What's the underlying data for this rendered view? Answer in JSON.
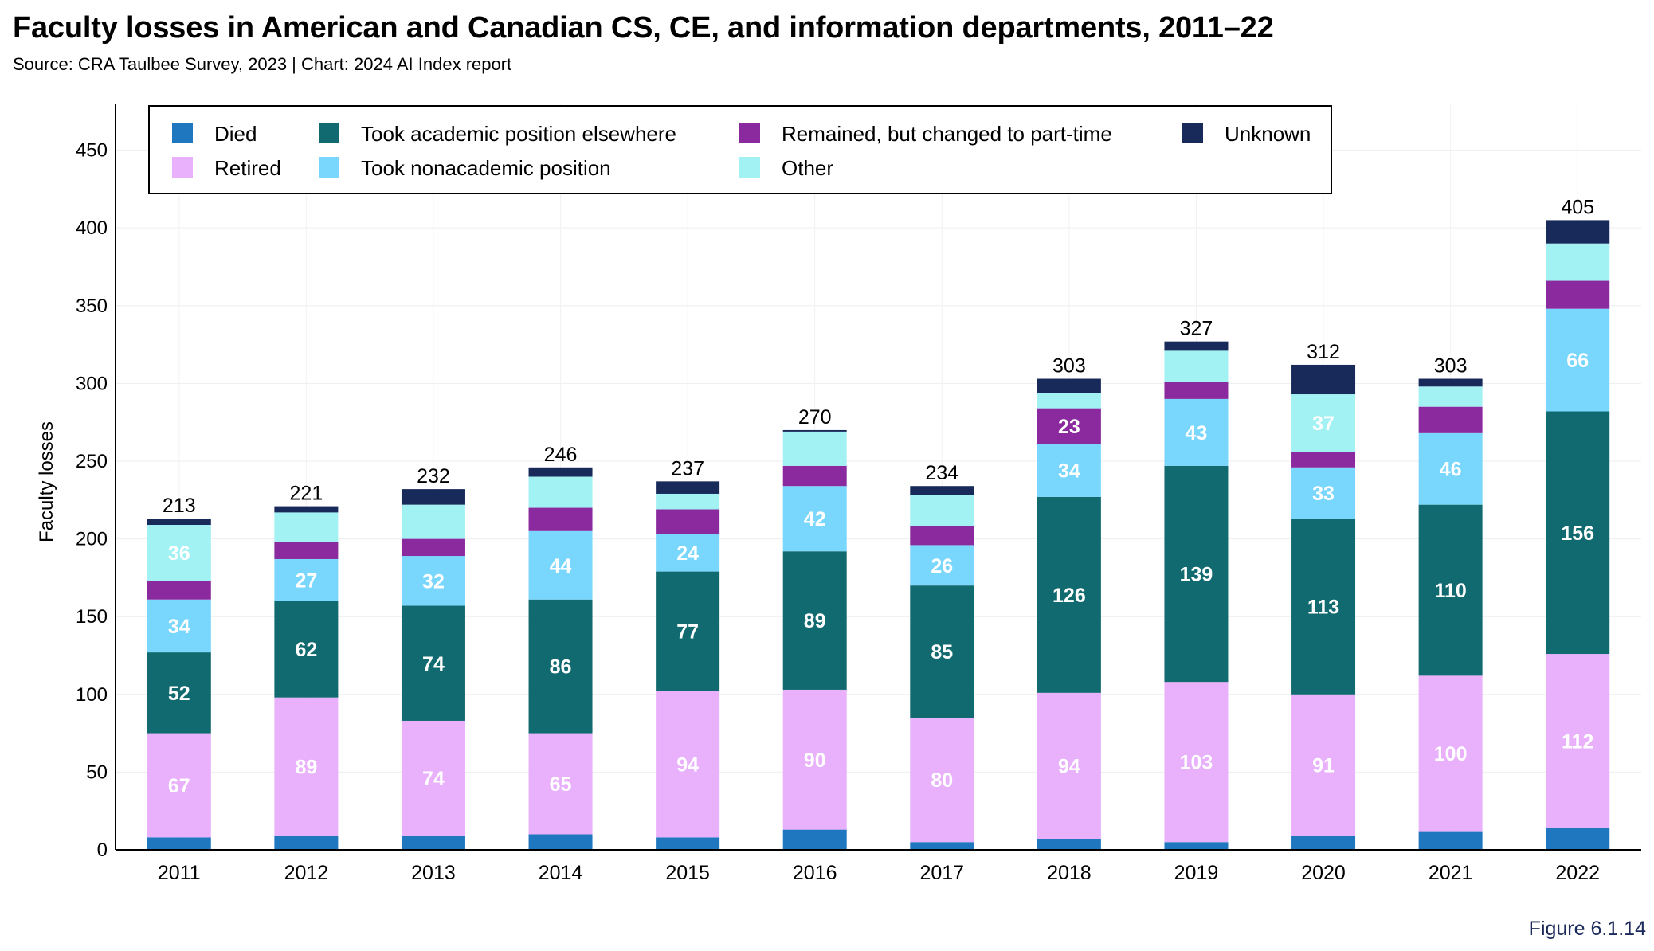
{
  "title": "Faculty losses in American and Canadian CS, CE, and information departments, 2011–22",
  "subtitle": "Source: CRA Taulbee Survey, 2023 | Chart: 2024 AI Index report",
  "figure_label": "Figure 6.1.14",
  "chart_data": {
    "type": "bar",
    "stacked": true,
    "ylabel": "Faculty losses",
    "xlabel": "",
    "ylim": [
      0,
      480
    ],
    "yticks": [
      0,
      50,
      100,
      150,
      200,
      250,
      300,
      350,
      400,
      450
    ],
    "grid": true,
    "legend_position": "top",
    "categories": [
      "2011",
      "2012",
      "2013",
      "2014",
      "2015",
      "2016",
      "2017",
      "2018",
      "2019",
      "2020",
      "2021",
      "2022"
    ],
    "series": [
      {
        "name": "Died",
        "color": "#1f77bf",
        "values": [
          8,
          9,
          9,
          10,
          8,
          13,
          5,
          7,
          5,
          9,
          12,
          14
        ],
        "show_labels": false
      },
      {
        "name": "Retired",
        "color": "#e9b0fb",
        "values": [
          67,
          89,
          74,
          65,
          94,
          90,
          80,
          94,
          103,
          91,
          100,
          112
        ],
        "show_labels": true
      },
      {
        "name": "Took academic position elsewhere",
        "color": "#116a6f",
        "values": [
          52,
          62,
          74,
          86,
          77,
          89,
          85,
          126,
          139,
          113,
          110,
          156
        ],
        "show_labels": true
      },
      {
        "name": "Took nonacademic position",
        "color": "#79d6fc",
        "values": [
          34,
          27,
          32,
          44,
          24,
          42,
          26,
          34,
          43,
          33,
          46,
          66
        ],
        "show_labels": true
      },
      {
        "name": "Remained, but changed to part-time",
        "color": "#8b2a9e",
        "values": [
          12,
          11,
          11,
          15,
          16,
          13,
          12,
          23,
          11,
          10,
          17,
          18
        ],
        "show_labels": [
          false,
          false,
          false,
          false,
          false,
          false,
          false,
          true,
          false,
          false,
          false,
          false
        ]
      },
      {
        "name": "Other",
        "color": "#a2f1f3",
        "values": [
          36,
          19,
          22,
          20,
          10,
          22,
          20,
          10,
          20,
          37,
          13,
          24
        ],
        "show_labels": [
          true,
          false,
          false,
          false,
          false,
          false,
          false,
          false,
          false,
          true,
          false,
          false
        ]
      },
      {
        "name": "Unknown",
        "color": "#172a5a",
        "values": [
          4,
          4,
          10,
          6,
          8,
          1,
          6,
          9,
          6,
          19,
          5,
          15
        ],
        "show_labels": false
      }
    ],
    "totals": [
      213,
      221,
      232,
      246,
      237,
      270,
      234,
      303,
      327,
      312,
      303,
      405
    ]
  }
}
